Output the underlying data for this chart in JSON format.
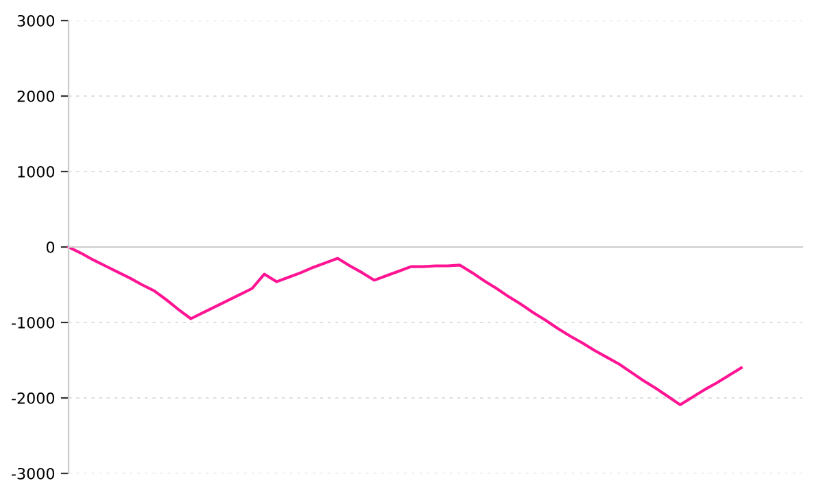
{
  "chart_data": {
    "type": "line",
    "categories": [
      null,
      null,
      null,
      null,
      null,
      null,
      null,
      null,
      null,
      null,
      null,
      null,
      null,
      null,
      null,
      null,
      null,
      null,
      null,
      null,
      null,
      null,
      null,
      null,
      null,
      null,
      null,
      null,
      null,
      null,
      null,
      null,
      null,
      null,
      null,
      null,
      null,
      null,
      null,
      null,
      null,
      null,
      null,
      null,
      null,
      null,
      null,
      null,
      null,
      null,
      null,
      null,
      null,
      null,
      null,
      null,
      null,
      null,
      null,
      null,
      null
    ],
    "series": [
      {
        "color": "#ff1493",
        "values": [
          0,
          -80,
          -170,
          -250,
          -330,
          -410,
          -500,
          -580,
          -700,
          -830,
          -950,
          -870,
          -790,
          -710,
          -630,
          -550,
          -360,
          -460,
          -400,
          -340,
          -270,
          -210,
          -150,
          -250,
          -340,
          -440,
          -380,
          -320,
          -260,
          -260,
          -250,
          -250,
          -240,
          -340,
          -450,
          -550,
          -660,
          -760,
          -870,
          -970,
          -1080,
          -1180,
          -1270,
          -1370,
          -1460,
          -1550,
          -1660,
          -1770,
          -1870,
          -1980,
          -2090,
          -1990,
          -1890,
          -1800,
          -1700,
          -1600,
          null,
          null,
          null,
          null,
          null
        ]
      }
    ],
    "ylim": [
      -3000,
      3000
    ],
    "yticks": [
      -3000,
      -2000,
      -1000,
      0,
      1000,
      2000,
      3000
    ],
    "grid": "y",
    "tick_labels": "y",
    "marker": "none",
    "line_style": "solid"
  }
}
